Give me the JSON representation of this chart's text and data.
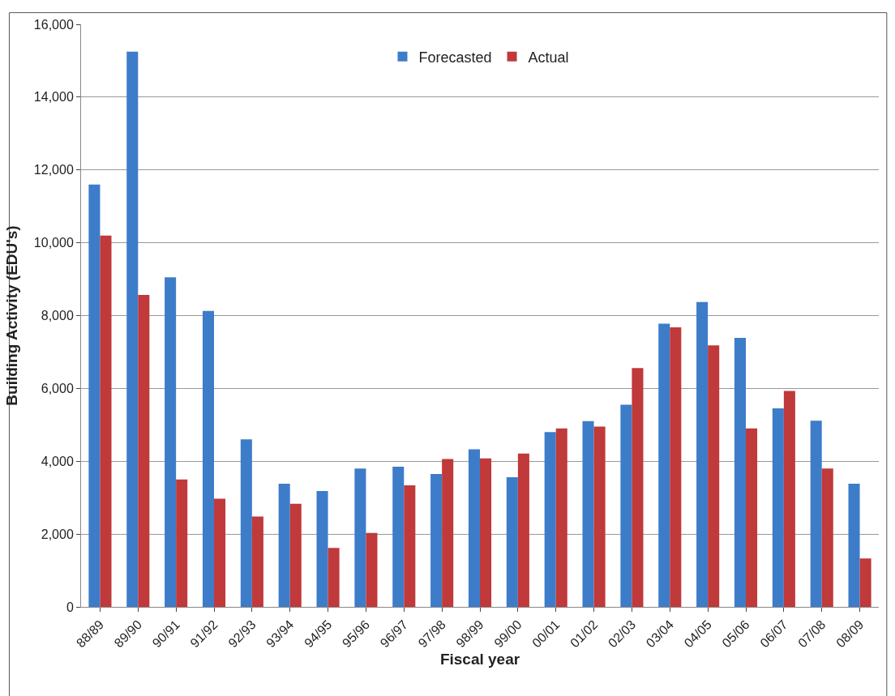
{
  "chart_data": {
    "type": "bar",
    "xlabel": "Fiscal year",
    "ylabel": "Building Activity (EDU's)",
    "categories": [
      "88/89",
      "89/90",
      "90/91",
      "91/92",
      "92/93",
      "93/94",
      "94/95",
      "95/96",
      "96/97",
      "97/98",
      "98/99",
      "99/00",
      "00/01",
      "01/02",
      "02/03",
      "03/04",
      "04/05",
      "05/06",
      "06/07",
      "07/08",
      "08/09"
    ],
    "series": [
      {
        "name": "Forecasted",
        "color": "#3d7cc9",
        "values": [
          11600,
          15250,
          9050,
          8130,
          4600,
          3380,
          3180,
          3800,
          3850,
          3650,
          4330,
          3560,
          4800,
          5100,
          5550,
          7780,
          8370,
          7390,
          5450,
          5110,
          3380
        ]
      },
      {
        "name": "Actual",
        "color": "#c0393b",
        "values": [
          10200,
          8570,
          3500,
          2970,
          2480,
          2830,
          1620,
          2030,
          3340,
          4060,
          4080,
          4210,
          4900,
          4950,
          6560,
          7680,
          7180,
          4900,
          5930,
          3800,
          1330
        ]
      }
    ],
    "ylim": [
      0,
      16000
    ],
    "yticks": [
      {
        "value": 0,
        "label": "0"
      },
      {
        "value": 2000,
        "label": "2,000"
      },
      {
        "value": 4000,
        "label": "4,000"
      },
      {
        "value": 6000,
        "label": "6,000"
      },
      {
        "value": 8000,
        "label": "8,000"
      },
      {
        "value": 10000,
        "label": "10,000"
      },
      {
        "value": 12000,
        "label": "12,000"
      },
      {
        "value": 14000,
        "label": "14,000"
      },
      {
        "value": 16000,
        "label": "16,000"
      }
    ],
    "grid": "y",
    "legend": "top"
  }
}
